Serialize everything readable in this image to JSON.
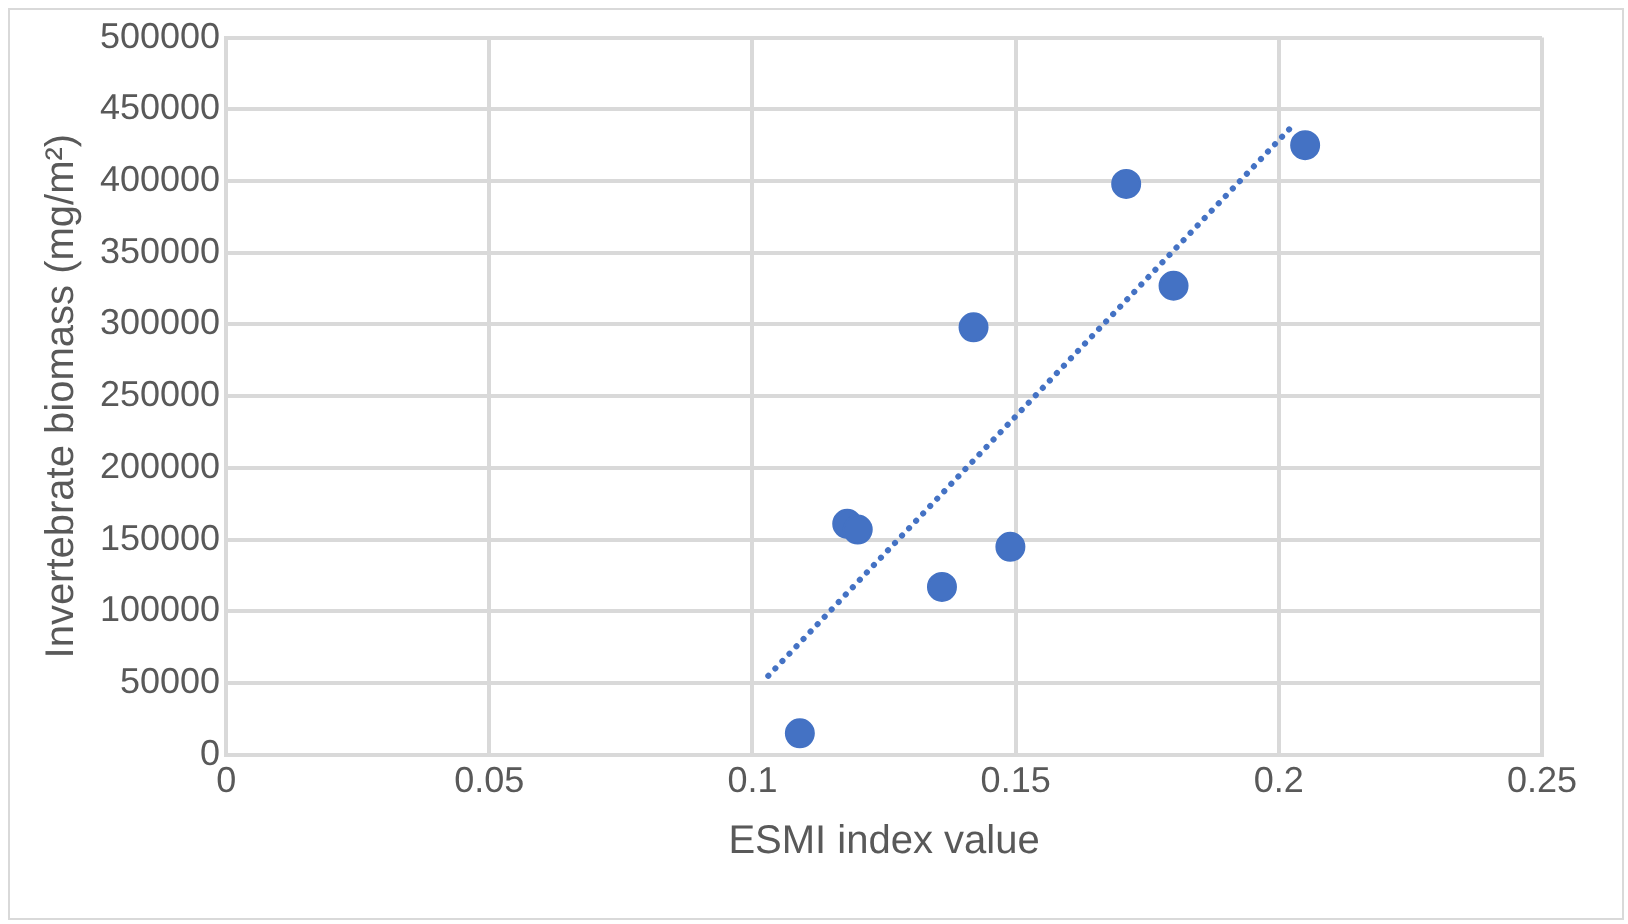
{
  "chart_data": {
    "type": "scatter",
    "xlabel": "ESMI index value",
    "ylabel": "Invertebrate biomass (mg/m²)",
    "xlim": [
      0,
      0.25
    ],
    "xticks": [
      0,
      0.05,
      0.1,
      0.15,
      0.2,
      0.25
    ],
    "ylim": [
      0,
      500000
    ],
    "yticks": [
      0,
      50000,
      100000,
      150000,
      200000,
      250000,
      300000,
      350000,
      400000,
      450000,
      500000
    ],
    "grid": true,
    "legend": false,
    "marker": "circle",
    "series": [
      {
        "color": "#4472c4",
        "x": [
          0.109,
          0.118,
          0.12,
          0.136,
          0.142,
          0.149,
          0.171,
          0.18,
          0.205
        ],
        "values": [
          15000,
          161000,
          157000,
          117000,
          298000,
          145000,
          398000,
          327000,
          425000
        ]
      },
      {
        "type": "line",
        "color": "#4472c4",
        "line_style": "dotted",
        "marker": "none",
        "x": [
          0.103,
          0.203
        ],
        "values": [
          55000,
          440000
        ]
      }
    ]
  }
}
